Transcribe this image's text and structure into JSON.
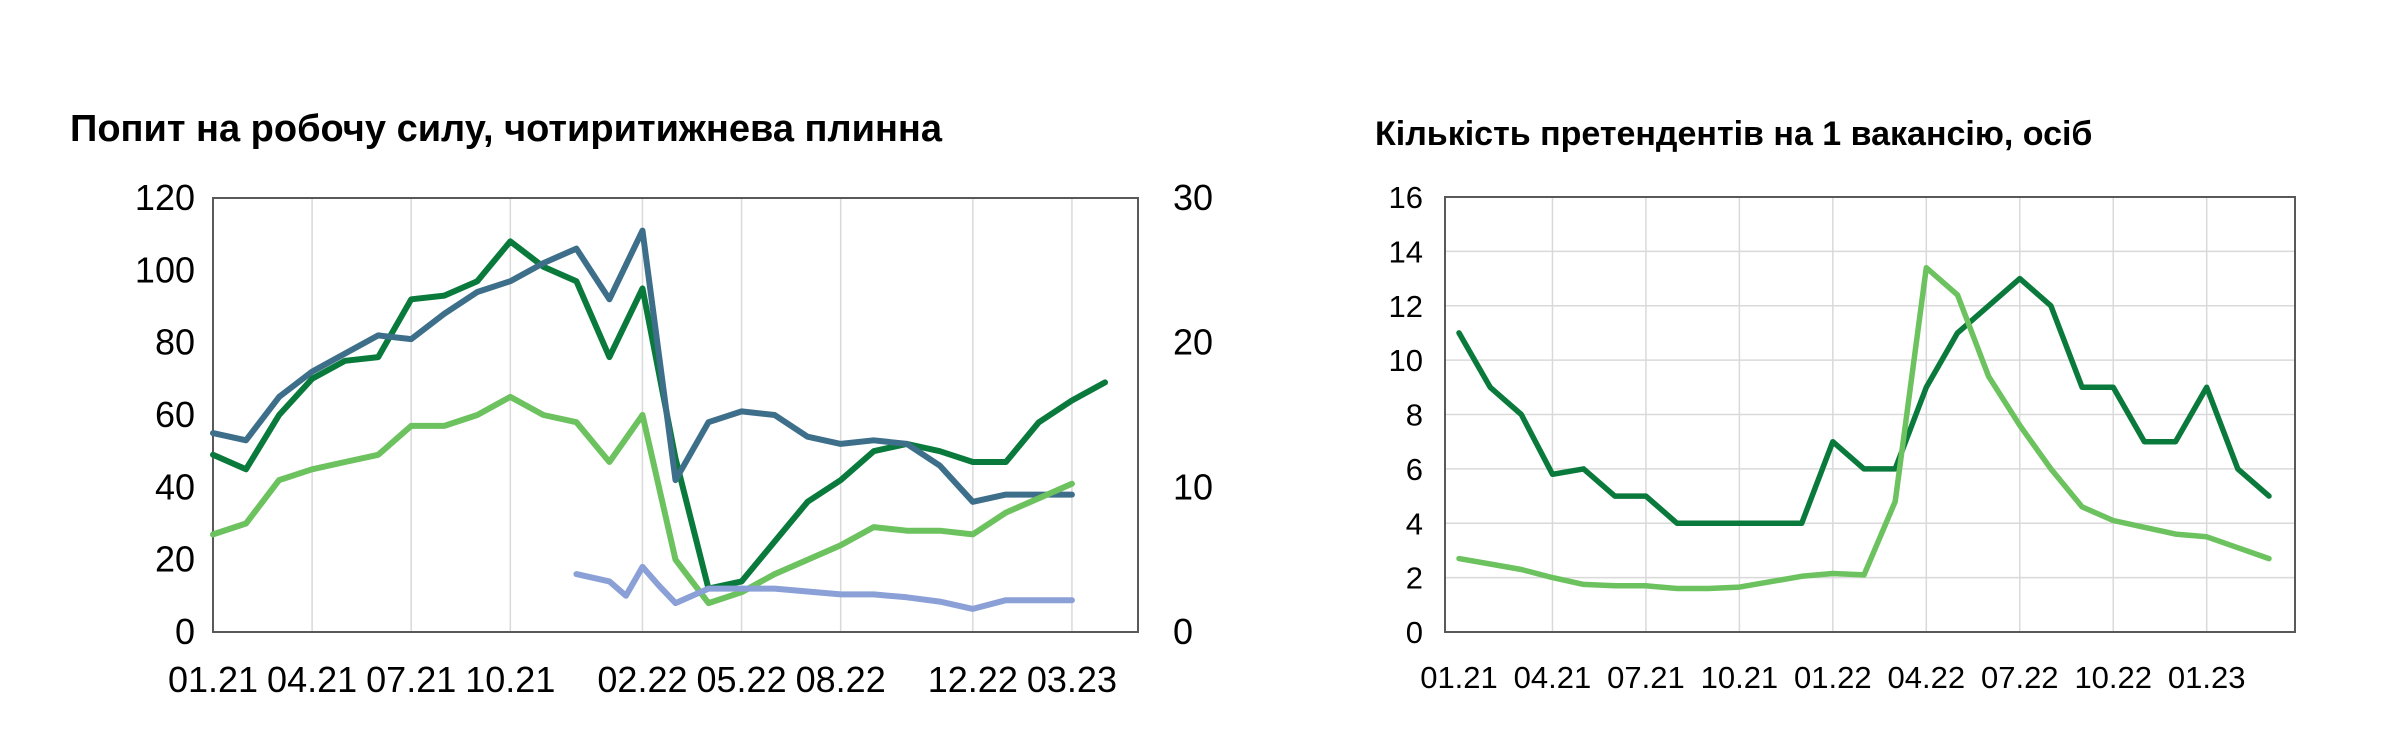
{
  "chart_data": [
    {
      "type": "line",
      "title": "Попит на робочу силу, чотиритижнева плинна",
      "xlabel": "",
      "ylabel": "",
      "x_ticks": [
        "01.21",
        "04.21",
        "07.21",
        "10.21",
        "02.22",
        "05.22",
        "08.22",
        "12.22",
        "03.23"
      ],
      "y_ticks_left": [
        "0",
        "20",
        "40",
        "60",
        "80",
        "100",
        "120"
      ],
      "y_ticks_right": [
        "0",
        "10",
        "20",
        "30"
      ],
      "ylim_left": [
        0,
        120
      ],
      "ylim_right": [
        0,
        30
      ],
      "grid": "vertical",
      "legend": "none",
      "series": [
        {
          "axis": "left",
          "color": "#0a7a3c",
          "points": [
            [
              "01.21",
              49
            ],
            [
              "02.21",
              45
            ],
            [
              "03.21",
              60
            ],
            [
              "04.21",
              70
            ],
            [
              "05.21",
              75
            ],
            [
              "06.21",
              76
            ],
            [
              "07.21",
              92
            ],
            [
              "08.21",
              93
            ],
            [
              "09.21",
              97
            ],
            [
              "10.21",
              108
            ],
            [
              "11.21",
              101
            ],
            [
              "12.21",
              97
            ],
            [
              "01.22",
              76
            ],
            [
              "02.22",
              95
            ],
            [
              "03.22",
              48
            ],
            [
              "04.22",
              12
            ],
            [
              "05.22",
              14
            ],
            [
              "06.22",
              25
            ],
            [
              "07.22",
              36
            ],
            [
              "08.22",
              42
            ],
            [
              "09.22",
              50
            ],
            [
              "10.22",
              52
            ],
            [
              "11.22",
              50
            ],
            [
              "12.22",
              47
            ],
            [
              "01.23",
              47
            ],
            [
              "02.23",
              58
            ],
            [
              "03.23",
              64
            ],
            [
              "04.23",
              69
            ]
          ]
        },
        {
          "axis": "left",
          "color": "#3e6f8a",
          "points": [
            [
              "01.21",
              55
            ],
            [
              "02.21",
              53
            ],
            [
              "03.21",
              65
            ],
            [
              "04.21",
              72
            ],
            [
              "05.21",
              77
            ],
            [
              "06.21",
              82
            ],
            [
              "07.21",
              81
            ],
            [
              "08.21",
              88
            ],
            [
              "09.21",
              94
            ],
            [
              "10.21",
              97
            ],
            [
              "11.21",
              102
            ],
            [
              "12.21",
              106
            ],
            [
              "01.22",
              92
            ],
            [
              "02.22",
              111
            ],
            [
              "03.22",
              42
            ],
            [
              "04.22",
              58
            ],
            [
              "05.22",
              61
            ],
            [
              "06.22",
              60
            ],
            [
              "07.22",
              54
            ],
            [
              "08.22",
              52
            ],
            [
              "09.22",
              53
            ],
            [
              "10.22",
              52
            ],
            [
              "11.22",
              46
            ],
            [
              "12.22",
              36
            ],
            [
              "01.23",
              38
            ],
            [
              "02.23",
              38
            ],
            [
              "03.23",
              38
            ]
          ]
        },
        {
          "axis": "left",
          "color": "#6cc25e",
          "points": [
            [
              "01.21",
              27
            ],
            [
              "02.21",
              30
            ],
            [
              "03.21",
              42
            ],
            [
              "04.21",
              45
            ],
            [
              "05.21",
              47
            ],
            [
              "06.21",
              49
            ],
            [
              "07.21",
              57
            ],
            [
              "08.21",
              57
            ],
            [
              "09.21",
              60
            ],
            [
              "10.21",
              65
            ],
            [
              "11.21",
              60
            ],
            [
              "12.21",
              58
            ],
            [
              "01.22",
              47
            ],
            [
              "02.22",
              60
            ],
            [
              "03.22",
              20
            ],
            [
              "04.22",
              8
            ],
            [
              "05.22",
              11
            ],
            [
              "06.22",
              16
            ],
            [
              "07.22",
              20
            ],
            [
              "08.22",
              24
            ],
            [
              "09.22",
              29
            ],
            [
              "10.22",
              28
            ],
            [
              "11.22",
              28
            ],
            [
              "12.22",
              27
            ],
            [
              "01.23",
              33
            ],
            [
              "02.23",
              37
            ],
            [
              "03.23",
              41
            ]
          ]
        },
        {
          "axis": "right",
          "color": "#8aa0d6",
          "points": [
            [
              "12.21",
              4
            ],
            [
              "01.22",
              3.5
            ],
            [
              "01.22b",
              2.5
            ],
            [
              "02.22",
              4.5
            ],
            [
              "02.22b",
              3.2
            ],
            [
              "03.22",
              2
            ],
            [
              "04.22",
              3
            ],
            [
              "05.22",
              3
            ],
            [
              "06.22",
              3
            ],
            [
              "07.22",
              2.8
            ],
            [
              "08.22",
              2.6
            ],
            [
              "09.22",
              2.6
            ],
            [
              "10.22",
              2.4
            ],
            [
              "11.22",
              2.1
            ],
            [
              "12.22",
              1.6
            ],
            [
              "01.23",
              2.2
            ],
            [
              "02.23",
              2.2
            ],
            [
              "03.23",
              2.2
            ]
          ]
        }
      ]
    },
    {
      "type": "line",
      "title": "Кількість претендентів на 1 вакансію, осіб",
      "xlabel": "",
      "ylabel": "",
      "x_ticks": [
        "01.21",
        "04.21",
        "07.21",
        "10.21",
        "01.22",
        "04.22",
        "07.22",
        "10.22",
        "01.23"
      ],
      "y_ticks": [
        "0",
        "2",
        "4",
        "6",
        "8",
        "10",
        "12",
        "14",
        "16"
      ],
      "ylim": [
        0,
        16
      ],
      "grid": "both",
      "legend": "none",
      "series": [
        {
          "color": "#0a7a3c",
          "x": [
            "01.21",
            "02.21",
            "03.21",
            "04.21",
            "05.21",
            "06.21",
            "07.21",
            "08.21",
            "09.21",
            "10.21",
            "11.21",
            "12.21",
            "01.22",
            "02.22",
            "03.22",
            "04.22",
            "05.22",
            "06.22",
            "07.22",
            "08.22",
            "09.22",
            "10.22",
            "11.22",
            "12.22",
            "01.23",
            "02.23",
            "03.23"
          ],
          "values": [
            11,
            9,
            8,
            5.8,
            6,
            5,
            5,
            4,
            4,
            4,
            4,
            4,
            7,
            6,
            6,
            9,
            11,
            12,
            13,
            12,
            9,
            9,
            7,
            7,
            9,
            6,
            5
          ]
        },
        {
          "color": "#6cc25e",
          "x": [
            "01.21",
            "02.21",
            "03.21",
            "04.21",
            "05.21",
            "06.21",
            "07.21",
            "08.21",
            "09.21",
            "10.21",
            "11.21",
            "12.21",
            "01.22",
            "02.22",
            "03.22",
            "04.22",
            "05.22",
            "06.22",
            "07.22",
            "08.22",
            "09.22",
            "10.22",
            "11.22",
            "12.22",
            "01.23",
            "02.23",
            "03.23"
          ],
          "values": [
            2.7,
            2.5,
            2.3,
            2,
            1.75,
            1.7,
            1.7,
            1.6,
            1.6,
            1.65,
            1.85,
            2.05,
            2.15,
            2.1,
            4.8,
            13.4,
            12.4,
            9.4,
            7.6,
            6,
            4.6,
            4.1,
            3.85,
            3.6,
            3.5,
            3.1,
            2.7
          ]
        }
      ]
    }
  ]
}
